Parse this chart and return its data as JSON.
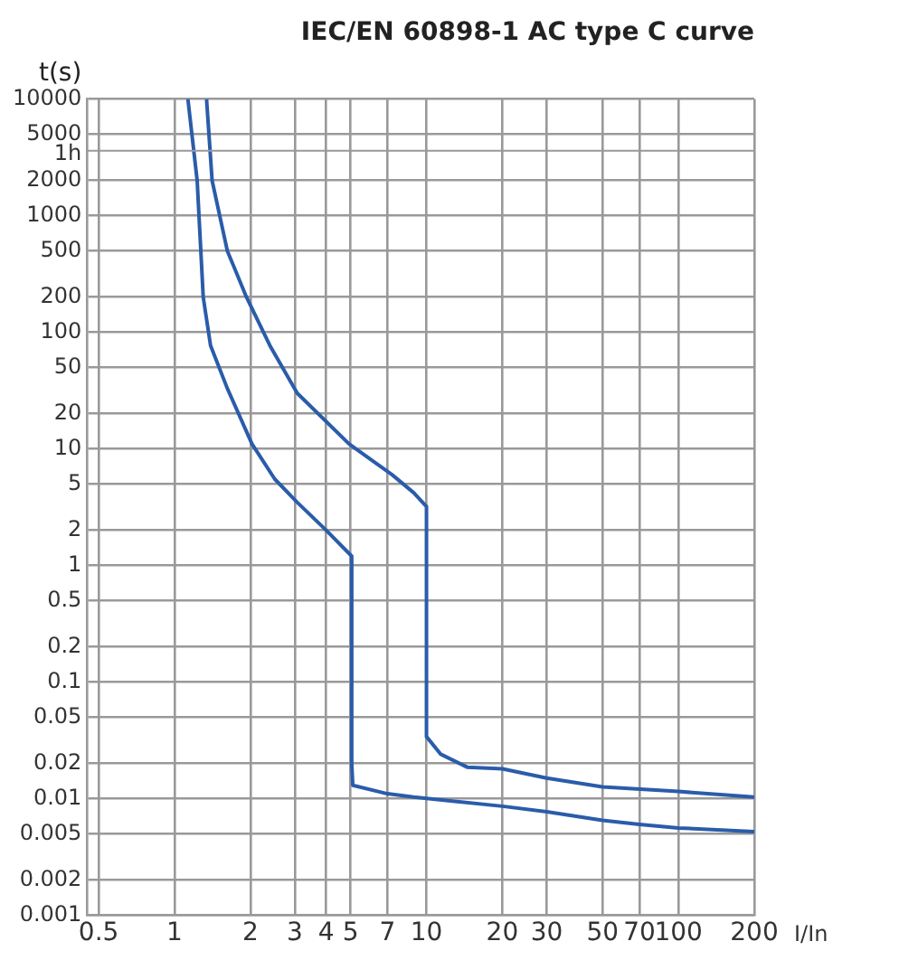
{
  "chart_data": {
    "type": "line",
    "title": "IEC/EN 60898-1 AC type C curve",
    "xlabel": "I/In",
    "ylabel": "t(s)",
    "log": "xy",
    "grid": true,
    "legend": false,
    "marker": "none",
    "line_style": "solid",
    "xlim": [
      0.45,
      200
    ],
    "xticks": [
      0.5,
      1,
      2,
      3,
      4,
      5,
      7,
      10,
      20,
      30,
      50,
      70,
      100,
      200
    ],
    "ylim": [
      0.001,
      10000
    ],
    "yticks": [
      0.001,
      0.002,
      0.005,
      0.01,
      0.02,
      0.05,
      0.1,
      0.2,
      0.5,
      1,
      2,
      5,
      10,
      20,
      50,
      100,
      200,
      500,
      1000,
      2000,
      5000,
      10000
    ],
    "ref_lines": [
      {
        "axis": "y",
        "value": 3600,
        "label": "1h"
      }
    ],
    "series": [
      {
        "color": "#2a5caa",
        "x": [
          1.13,
          1.23,
          1.3,
          1.39,
          1.62,
          2.03,
          2.5,
          3.06,
          4,
          5.05,
          5.05,
          5.1,
          7,
          8.9,
          20,
          30,
          50,
          70,
          100,
          200
        ],
        "values": [
          10000,
          2000,
          200,
          77,
          33,
          11,
          5.5,
          3.5,
          2,
          1.2,
          0.02,
          0.013,
          0.011,
          0.0103,
          0.0086,
          0.0077,
          0.0065,
          0.006,
          0.0056,
          0.0052
        ]
      },
      {
        "color": "#2a5caa",
        "x": [
          1.34,
          1.41,
          1.62,
          1.93,
          2.39,
          3.07,
          4.93,
          7.3,
          8.9,
          10,
          10,
          11.4,
          14.5,
          20,
          30,
          50,
          100,
          200
        ],
        "values": [
          10000,
          2000,
          500,
          200,
          77,
          30,
          11,
          6,
          4.2,
          3.2,
          0.034,
          0.024,
          0.0186,
          0.018,
          0.015,
          0.0126,
          0.0115,
          0.0103
        ]
      }
    ]
  }
}
